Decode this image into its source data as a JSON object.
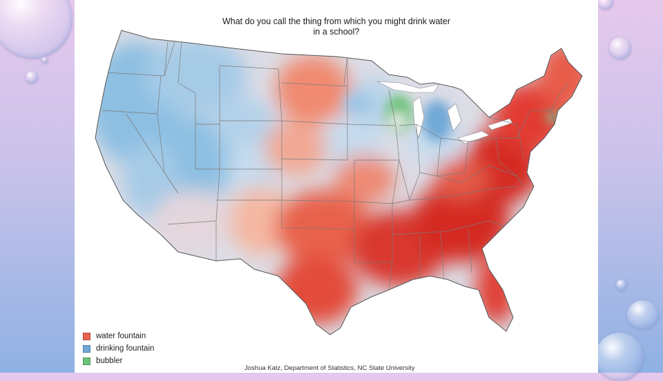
{
  "title": {
    "line1": "What do you call the thing from which you might drink water",
    "line2": "in a school?"
  },
  "legend": [
    {
      "label": "water fountain",
      "color": "#e8624c"
    },
    {
      "label": "drinking fountain",
      "color": "#6fa8d6"
    },
    {
      "label": "bubbler",
      "color": "#6cc27a"
    }
  ],
  "credit": "Joshua Katz, Department of Statistics, NC State University",
  "colors": {
    "water_fountain_dark": "#d42a23",
    "water_fountain": "#e8624c",
    "water_fountain_light": "#f2a893",
    "drinking_fountain": "#8cbfe2",
    "drinking_fountain_light": "#c6dcee",
    "bubbler": "#6cc27a",
    "neutral": "#dcdde6"
  }
}
